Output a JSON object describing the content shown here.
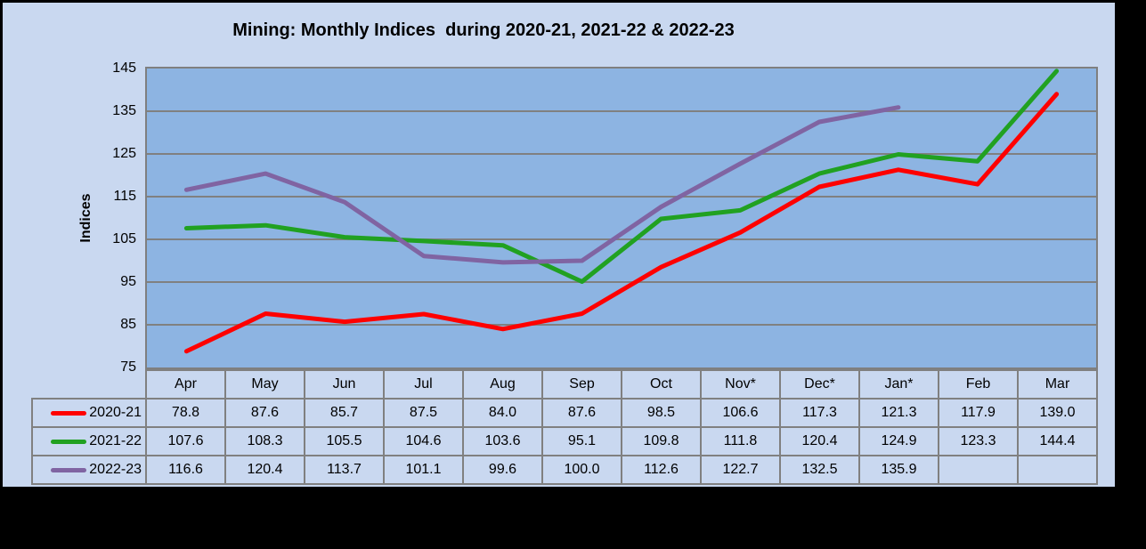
{
  "chart_data": {
    "type": "line",
    "title": "Mining: Monthly Indices  during 2020-21, 2021-22 & 2022-23",
    "ylabel": "Indices",
    "ylim": [
      75,
      145
    ],
    "yticks": [
      145,
      135,
      125,
      115,
      105,
      95,
      85,
      75
    ],
    "grid": true,
    "legend_position": "table-left",
    "categories": [
      "Apr",
      "May",
      "Jun",
      "Jul",
      "Aug",
      "Sep",
      "Oct",
      "Nov*",
      "Dec*",
      "Jan*",
      "Feb",
      "Mar"
    ],
    "series": [
      {
        "name": "2020-21",
        "color": "#FF0000",
        "values": [
          78.8,
          87.6,
          85.7,
          87.5,
          84.0,
          87.6,
          98.5,
          106.6,
          117.3,
          121.3,
          117.9,
          139.0
        ]
      },
      {
        "name": "2021-22",
        "color": "#21A121",
        "values": [
          107.6,
          108.3,
          105.5,
          104.6,
          103.6,
          95.1,
          109.8,
          111.8,
          120.4,
          124.9,
          123.3,
          144.4
        ]
      },
      {
        "name": "2022-23",
        "color": "#8064A2",
        "values": [
          116.6,
          120.4,
          113.7,
          101.1,
          99.6,
          100.0,
          112.6,
          122.7,
          132.5,
          135.9,
          null,
          null
        ]
      }
    ]
  },
  "colors": {
    "card_bg": "#C9D8F0",
    "plot_bg": "#8DB4E2",
    "grid": "#808080",
    "plot_border": "#7F7F7F",
    "table_border": "#808080",
    "text": "#000000"
  }
}
